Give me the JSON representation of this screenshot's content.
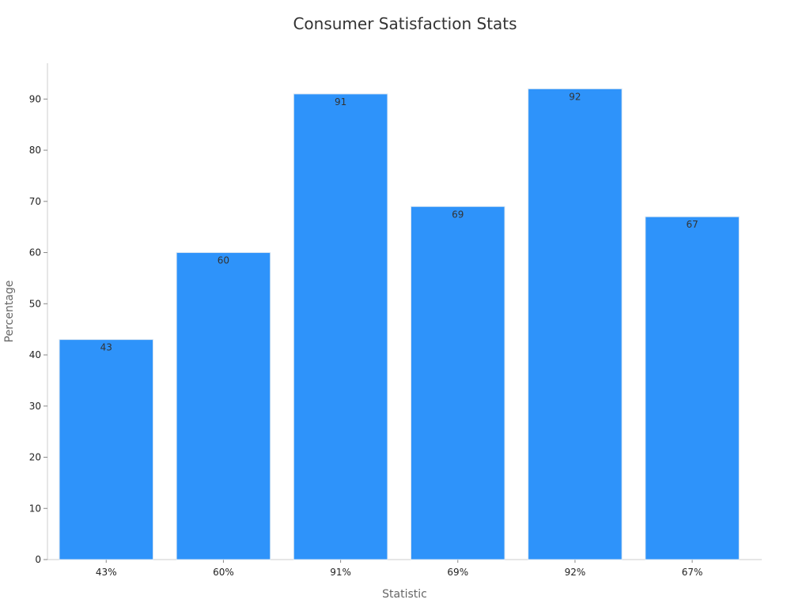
{
  "chart_data": {
    "type": "bar",
    "title": "Consumer Satisfaction Stats",
    "xlabel": "Statistic",
    "ylabel": "Percentage",
    "categories": [
      "43%",
      "60%",
      "91%",
      "69%",
      "92%",
      "67%"
    ],
    "values": [
      43,
      60,
      91,
      69,
      92,
      67
    ],
    "data_labels": [
      "43",
      "60",
      "91",
      "69",
      "92",
      "67"
    ],
    "yticks": [
      0,
      10,
      20,
      30,
      40,
      50,
      60,
      70,
      80,
      90
    ],
    "ylim": [
      0,
      97
    ],
    "grid": false,
    "legend": "none",
    "bar_color": "#2e93fa",
    "bar_edge_color": "#d9e6f2"
  }
}
